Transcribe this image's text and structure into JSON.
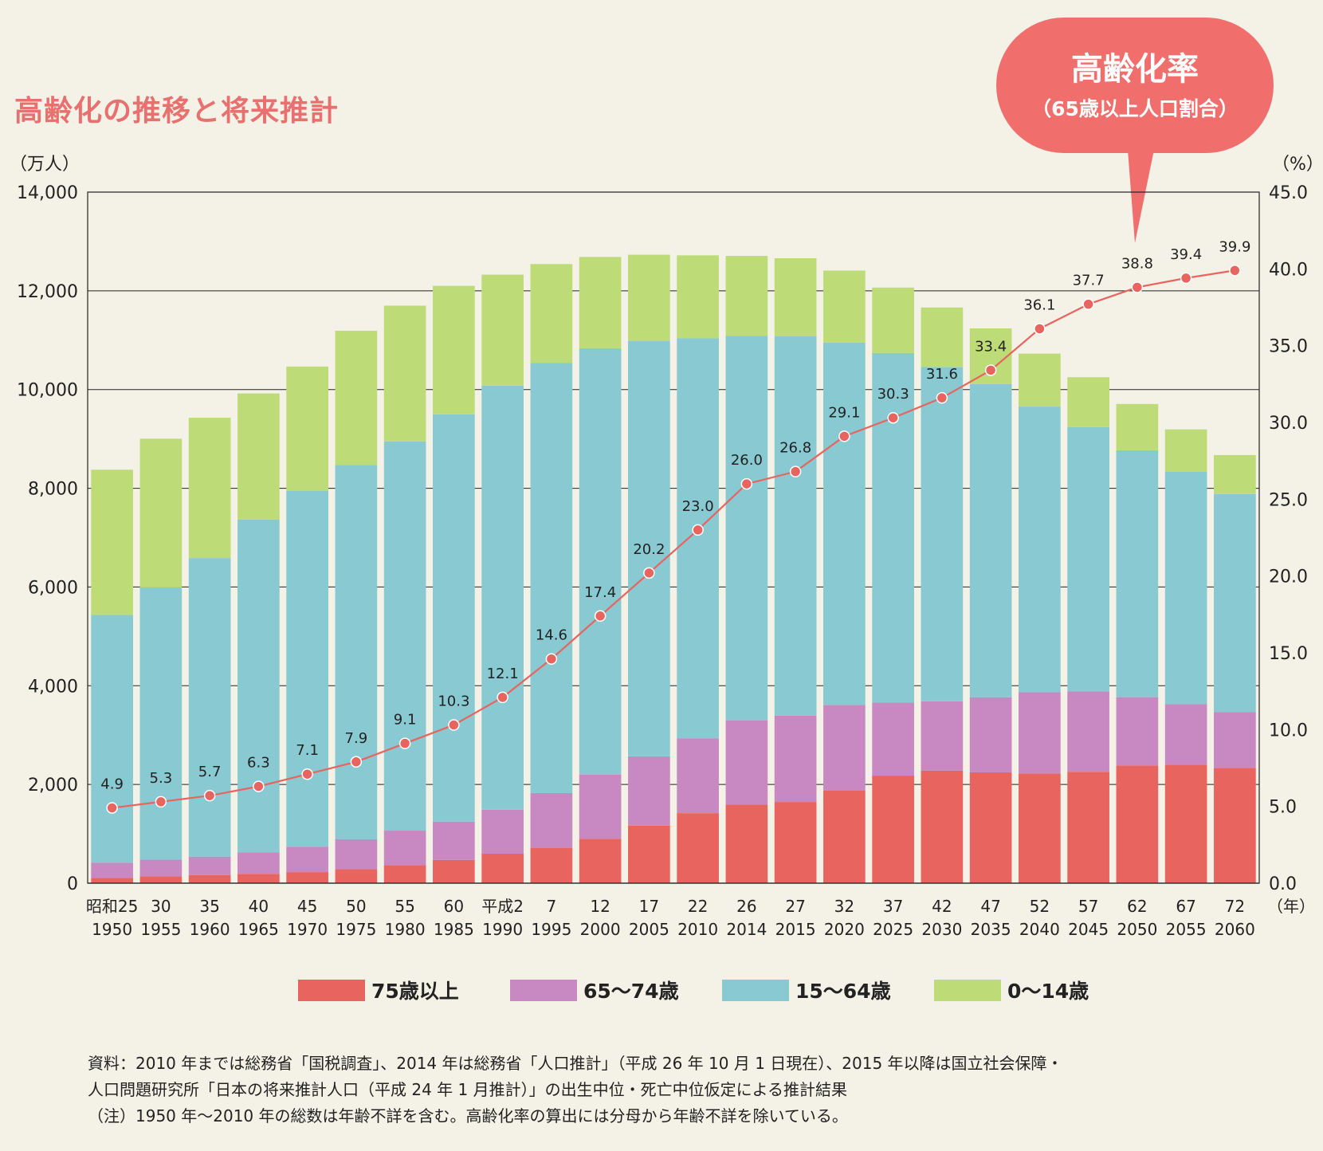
{
  "title": "高齢化の推移と将来推計",
  "callout": {
    "title": "高齢化率",
    "subtitle": "（65歳以上人口割合）"
  },
  "notes": [
    "資料：2010 年までは総務省「国税調査」、2014 年は総務省「人口推計」（平成 26 年 10 月 1 日現在）、2015 年以降は国立社会保障・",
    "人口問題研究所「日本の将来推計人口（平成 24 年 1 月推計）」の出生中位・死亡中位仮定による推計結果",
    "（注）1950 年〜2010 年の総数は年齢不詳を含む。高齢化率の算出には分母から年齢不詳を除いている。"
  ],
  "chart_data": {
    "type": "bar",
    "stacked": true,
    "y_unit_label": "（万人）",
    "y2_unit_label": "（%）",
    "x_unit_label": "（年）",
    "ylim": [
      0,
      14000
    ],
    "y_ticks": [
      "0",
      "2,000",
      "4,000",
      "6,000",
      "8,000",
      "10,000",
      "12,000",
      "14,000"
    ],
    "y2lim": [
      0,
      45
    ],
    "y2_ticks": [
      "0.0",
      "5.0",
      "10.0",
      "15.0",
      "20.0",
      "25.0",
      "30.0",
      "35.0",
      "40.0",
      "45.0"
    ],
    "grid": true,
    "legend_position": "bottom",
    "categories_top": [
      "昭和25",
      "30",
      "35",
      "40",
      "45",
      "50",
      "55",
      "60",
      "平成2",
      "7",
      "12",
      "17",
      "22",
      "26",
      "27",
      "32",
      "37",
      "42",
      "47",
      "52",
      "57",
      "62",
      "67",
      "72"
    ],
    "categories": [
      "1950",
      "1955",
      "1960",
      "1965",
      "1970",
      "1975",
      "1980",
      "1985",
      "1990",
      "1995",
      "2000",
      "2005",
      "2010",
      "2014",
      "2015",
      "2020",
      "2025",
      "2030",
      "2035",
      "2040",
      "2045",
      "2050",
      "2055",
      "2060"
    ],
    "series": [
      {
        "name": "75歳以上",
        "color": "#e8645f",
        "values": [
          107,
          139,
          163,
          189,
          225,
          284,
          366,
          471,
          597,
          717,
          900,
          1164,
          1419,
          1592,
          1646,
          1879,
          2179,
          2278,
          2245,
          2223,
          2257,
          2385,
          2401,
          2336
        ]
      },
      {
        "name": "65〜74歳",
        "color": "#c889c3",
        "values": [
          309,
          336,
          375,
          435,
          514,
          604,
          699,
          776,
          892,
          1109,
          1301,
          1407,
          1517,
          1708,
          1749,
          1733,
          1479,
          1407,
          1522,
          1645,
          1628,
          1383,
          1225,
          1128
        ]
      },
      {
        "name": "15〜64歳",
        "color": "#88c9d2",
        "values": [
          5017,
          5517,
          6047,
          6744,
          7212,
          7581,
          7883,
          8251,
          8590,
          8716,
          8638,
          8409,
          8103,
          7785,
          7682,
          7341,
          7084,
          6773,
          6343,
          5787,
          5353,
          5001,
          4706,
          4418
        ]
      },
      {
        "name": "0〜14歳",
        "color": "#bddc77",
        "values": [
          2943,
          3012,
          2843,
          2553,
          2515,
          2722,
          2751,
          2603,
          2249,
          2001,
          1847,
          1752,
          1680,
          1623,
          1583,
          1457,
          1324,
          1204,
          1129,
          1073,
          1012,
          939,
          861,
          791
        ]
      }
    ],
    "line": {
      "name": "高齢化率",
      "color": "#e8645f",
      "axis": "right",
      "values": [
        4.9,
        5.3,
        5.7,
        6.3,
        7.1,
        7.9,
        9.1,
        10.3,
        12.1,
        14.6,
        17.4,
        20.2,
        23.0,
        26.0,
        26.8,
        29.1,
        30.3,
        31.6,
        33.4,
        36.1,
        37.7,
        38.8,
        39.4,
        39.9
      ]
    }
  }
}
